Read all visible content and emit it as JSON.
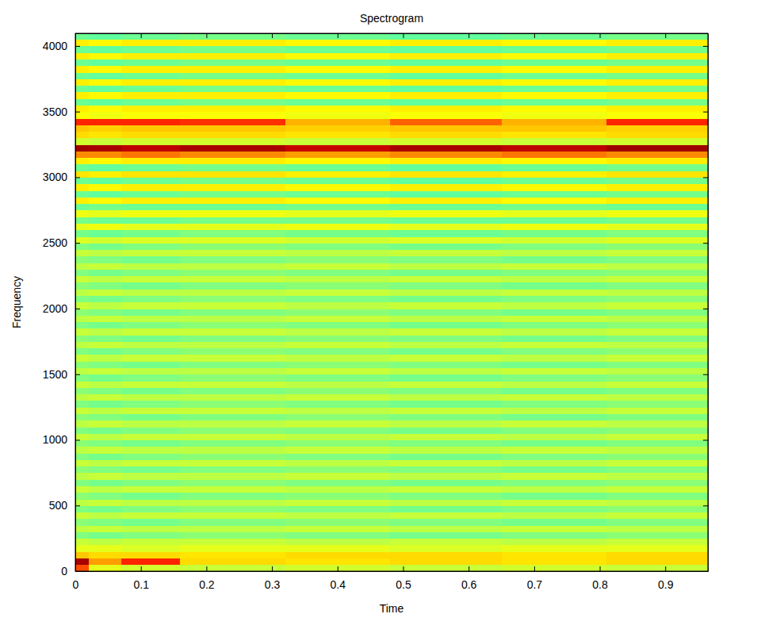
{
  "chart_data": {
    "type": "heatmap",
    "title": "Spectrogram",
    "x_label": "Time",
    "y_label": "Frequency",
    "xlim": [
      0,
      0.965
    ],
    "ylim": [
      0,
      4096
    ],
    "xticks": [
      0,
      0.1,
      0.2,
      0.3,
      0.4,
      0.5,
      0.6,
      0.7,
      0.8,
      0.9
    ],
    "yticks": [
      0,
      500,
      1000,
      1500,
      2000,
      2500,
      3000,
      3500,
      4000
    ],
    "color": "jet",
    "zlim": [
      0,
      100
    ],
    "time_edges": [
      0,
      0.02,
      0.07,
      0.16,
      0.32,
      0.48,
      0.65,
      0.81,
      0.965
    ],
    "freq_edges": [
      0,
      50,
      100,
      150,
      200,
      250,
      300,
      350,
      400,
      450,
      500,
      550,
      600,
      650,
      700,
      750,
      800,
      850,
      900,
      950,
      1000,
      1050,
      1100,
      1150,
      1200,
      1250,
      1300,
      1350,
      1400,
      1450,
      1500,
      1550,
      1600,
      1650,
      1700,
      1750,
      1800,
      1850,
      1900,
      1950,
      2000,
      2050,
      2100,
      2150,
      2200,
      2250,
      2300,
      2350,
      2400,
      2450,
      2500,
      2550,
      2600,
      2650,
      2700,
      2750,
      2800,
      2850,
      2900,
      2950,
      3000,
      3050,
      3100,
      3150,
      3200,
      3250,
      3300,
      3350,
      3400,
      3450,
      3500,
      3550,
      3600,
      3650,
      3700,
      3750,
      3800,
      3850,
      3900,
      3950,
      4000,
      4050,
      4096
    ],
    "cells": [
      [
        80,
        60,
        58,
        57,
        58,
        57,
        58,
        57
      ],
      [
        96,
        72,
        84,
        66,
        65,
        66,
        65,
        66
      ],
      [
        68,
        66,
        66,
        65,
        66,
        66,
        65,
        66
      ],
      [
        60,
        60,
        59,
        60,
        60,
        59,
        60,
        60
      ],
      [
        57,
        56,
        57,
        57,
        56,
        57,
        56,
        57
      ],
      [
        50,
        49,
        50,
        51,
        50,
        49,
        50,
        51
      ],
      [
        56,
        57,
        56,
        56,
        57,
        56,
        57,
        56
      ],
      [
        51,
        50,
        49,
        50,
        51,
        50,
        49,
        50
      ],
      [
        57,
        56,
        57,
        57,
        56,
        57,
        56,
        57
      ],
      [
        50,
        49,
        50,
        51,
        50,
        49,
        50,
        51
      ],
      [
        56,
        57,
        56,
        56,
        57,
        56,
        57,
        56
      ],
      [
        51,
        50,
        49,
        50,
        51,
        50,
        49,
        50
      ],
      [
        57,
        56,
        57,
        57,
        56,
        57,
        56,
        57
      ],
      [
        50,
        49,
        50,
        51,
        50,
        49,
        50,
        51
      ],
      [
        56,
        57,
        56,
        56,
        57,
        56,
        57,
        56
      ],
      [
        51,
        50,
        49,
        50,
        51,
        50,
        49,
        50
      ],
      [
        57,
        56,
        57,
        57,
        56,
        57,
        56,
        57
      ],
      [
        50,
        49,
        50,
        51,
        50,
        49,
        50,
        51
      ],
      [
        56,
        57,
        56,
        56,
        57,
        56,
        57,
        56
      ],
      [
        51,
        50,
        49,
        50,
        51,
        50,
        49,
        50
      ],
      [
        57,
        56,
        57,
        57,
        56,
        57,
        56,
        57
      ],
      [
        50,
        49,
        50,
        51,
        50,
        49,
        50,
        51
      ],
      [
        56,
        57,
        56,
        56,
        57,
        56,
        57,
        56
      ],
      [
        51,
        50,
        49,
        50,
        51,
        50,
        49,
        50
      ],
      [
        57,
        56,
        57,
        57,
        56,
        57,
        56,
        57
      ],
      [
        50,
        49,
        50,
        51,
        50,
        49,
        50,
        51
      ],
      [
        56,
        57,
        56,
        56,
        57,
        56,
        57,
        56
      ],
      [
        51,
        50,
        49,
        50,
        51,
        50,
        49,
        50
      ],
      [
        57,
        56,
        57,
        57,
        56,
        57,
        56,
        57
      ],
      [
        50,
        49,
        50,
        51,
        50,
        49,
        50,
        51
      ],
      [
        56,
        57,
        56,
        56,
        57,
        56,
        57,
        56
      ],
      [
        51,
        50,
        49,
        50,
        51,
        50,
        49,
        50
      ],
      [
        57,
        56,
        57,
        57,
        56,
        57,
        56,
        57
      ],
      [
        50,
        49,
        50,
        51,
        50,
        49,
        50,
        51
      ],
      [
        56,
        57,
        56,
        56,
        57,
        56,
        57,
        56
      ],
      [
        51,
        50,
        49,
        50,
        51,
        50,
        49,
        50
      ],
      [
        57,
        56,
        57,
        57,
        56,
        57,
        56,
        57
      ],
      [
        50,
        49,
        50,
        51,
        50,
        49,
        50,
        51
      ],
      [
        56,
        57,
        56,
        56,
        57,
        56,
        57,
        56
      ],
      [
        51,
        50,
        49,
        50,
        51,
        50,
        49,
        50
      ],
      [
        57,
        56,
        57,
        57,
        56,
        57,
        56,
        57
      ],
      [
        50,
        49,
        50,
        51,
        50,
        49,
        50,
        51
      ],
      [
        56,
        57,
        56,
        56,
        57,
        56,
        57,
        56
      ],
      [
        51,
        50,
        49,
        50,
        51,
        50,
        49,
        50
      ],
      [
        57,
        56,
        57,
        57,
        56,
        57,
        56,
        57
      ],
      [
        50,
        49,
        50,
        51,
        50,
        49,
        50,
        51
      ],
      [
        56,
        57,
        56,
        56,
        57,
        56,
        57,
        56
      ],
      [
        51,
        50,
        49,
        50,
        51,
        50,
        49,
        50
      ],
      [
        57,
        56,
        57,
        57,
        56,
        57,
        56,
        57
      ],
      [
        50,
        49,
        50,
        51,
        50,
        49,
        50,
        51
      ],
      [
        59,
        58,
        59,
        59,
        58,
        59,
        58,
        59
      ],
      [
        49,
        48,
        49,
        50,
        49,
        48,
        49,
        50
      ],
      [
        60,
        61,
        60,
        60,
        61,
        60,
        61,
        60
      ],
      [
        49,
        48,
        48,
        49,
        49,
        48,
        48,
        49
      ],
      [
        61,
        60,
        61,
        61,
        60,
        61,
        60,
        61
      ],
      [
        48,
        49,
        48,
        48,
        49,
        48,
        49,
        48
      ],
      [
        64,
        63,
        64,
        64,
        63,
        64,
        63,
        64
      ],
      [
        48,
        47,
        48,
        49,
        48,
        47,
        48,
        49
      ],
      [
        64,
        63,
        64,
        64,
        63,
        64,
        63,
        64
      ],
      [
        48,
        47,
        48,
        49,
        48,
        47,
        48,
        49
      ],
      [
        65,
        64,
        65,
        65,
        64,
        65,
        64,
        65
      ],
      [
        48,
        47,
        48,
        49,
        48,
        47,
        48,
        49
      ],
      [
        64,
        63,
        64,
        64,
        63,
        64,
        63,
        64
      ],
      [
        74,
        74,
        76,
        74,
        72,
        74,
        76,
        74
      ],
      [
        97,
        96,
        94,
        96,
        93,
        96,
        94,
        97
      ],
      [
        58,
        57,
        58,
        58,
        57,
        58,
        57,
        58
      ],
      [
        66,
        65,
        66,
        66,
        65,
        66,
        65,
        66
      ],
      [
        68,
        67,
        68,
        68,
        67,
        68,
        68,
        67
      ],
      [
        84,
        84,
        84,
        83,
        70,
        78,
        70,
        84
      ],
      [
        62,
        61,
        62,
        62,
        61,
        62,
        61,
        62
      ],
      [
        64,
        63,
        64,
        64,
        63,
        64,
        63,
        64
      ],
      [
        48,
        47,
        48,
        49,
        48,
        47,
        48,
        49
      ],
      [
        64,
        63,
        64,
        64,
        63,
        64,
        63,
        64
      ],
      [
        48,
        47,
        48,
        49,
        48,
        47,
        48,
        49
      ],
      [
        64,
        63,
        64,
        64,
        63,
        64,
        63,
        64
      ],
      [
        48,
        47,
        48,
        49,
        48,
        47,
        48,
        49
      ],
      [
        64,
        63,
        64,
        64,
        63,
        64,
        63,
        64
      ],
      [
        48,
        47,
        48,
        49,
        48,
        47,
        48,
        49
      ],
      [
        64,
        63,
        64,
        64,
        63,
        64,
        63,
        64
      ],
      [
        48,
        47,
        48,
        49,
        48,
        47,
        48,
        49
      ],
      [
        64,
        63,
        64,
        64,
        63,
        64,
        63,
        64
      ],
      [
        48,
        47,
        48,
        49,
        48,
        47,
        48,
        49
      ]
    ]
  }
}
